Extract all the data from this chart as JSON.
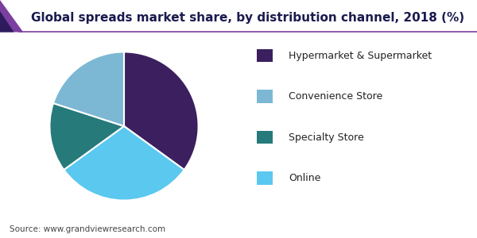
{
  "title": "Global spreads market share, by distribution channel, 2018 (%)",
  "labels": [
    "Hypermarket & Supermarket",
    "Online",
    "Specialty Store",
    "Convenience Store"
  ],
  "values": [
    35,
    30,
    15,
    20
  ],
  "colors": [
    "#3b1f5e",
    "#5bc8f0",
    "#267a7a",
    "#7cb8d4"
  ],
  "startangle": 90,
  "source": "Source: www.grandviewresearch.com",
  "title_color": "#1a1a4e",
  "background_color": "#ffffff",
  "legend_order": [
    "Hypermarket & Supermarket",
    "Convenience Store",
    "Specialty Store",
    "Online"
  ],
  "legend_colors": [
    "#3b1f5e",
    "#7cb8d4",
    "#267a7a",
    "#5bc8f0"
  ],
  "legend_fontsize": 9,
  "title_fontsize": 11,
  "header_line_color": "#7b3fa0"
}
